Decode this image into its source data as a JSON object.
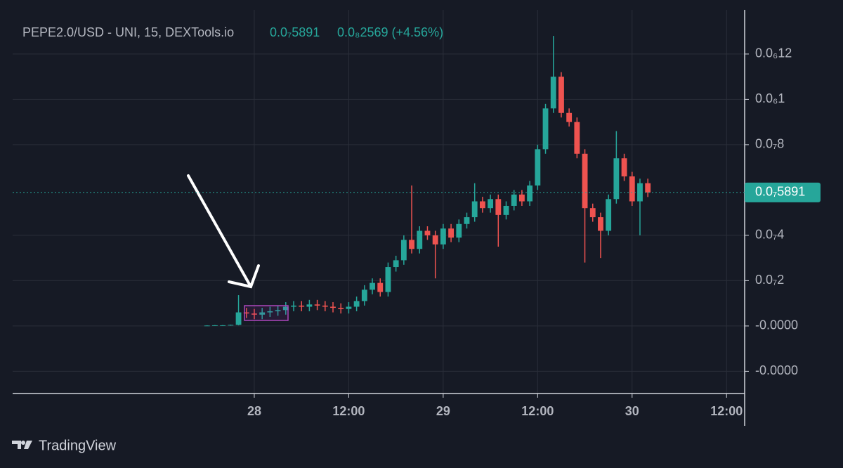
{
  "chart_data": {
    "type": "candlestick",
    "title": "PEPE2.0/USD - UNI, 15, DEXTools.io",
    "price": "0.0₇5891",
    "change": "0.0₈2569 (+4.56%)",
    "footer": "TradingView",
    "up_color": "#26a69a",
    "down_color": "#ef5350",
    "grid": true,
    "last_price": {
      "value": 5.891e-08,
      "label": "0.0₇5891"
    },
    "xlim": [
      -30.7,
      62.3
    ],
    "xticks": [
      {
        "value": 0,
        "label": "28"
      },
      {
        "value": 12,
        "label": "12:00"
      },
      {
        "value": 24,
        "label": "29"
      },
      {
        "value": 36,
        "label": "12:00"
      },
      {
        "value": 48,
        "label": "30"
      },
      {
        "value": 60,
        "label": "12:00"
      }
    ],
    "ylim": [
      -2.98e-08,
      1.395e-07
    ],
    "yticks": [
      {
        "value": 1.2e-07,
        "label": "0.0₆12"
      },
      {
        "value": 1e-07,
        "label": "0.0₆1"
      },
      {
        "value": 8e-08,
        "label": "0.0₇8"
      },
      {
        "value": 4e-08,
        "label": "0.0₇4"
      },
      {
        "value": 2e-08,
        "label": "0.0₇2"
      },
      {
        "value": 0,
        "label": "-0.0000"
      },
      {
        "value": -2e-08,
        "label": "-0.0000"
      }
    ],
    "x": [
      -6,
      -5,
      -4,
      -3,
      -2,
      -1,
      0,
      1,
      2,
      3,
      4,
      5,
      6,
      7,
      8,
      9,
      10,
      11,
      12,
      13,
      14,
      15,
      16,
      17,
      18,
      19,
      20,
      21,
      22,
      23,
      24,
      25,
      26,
      27,
      28,
      29,
      30,
      31,
      32,
      33,
      34,
      35,
      36,
      37,
      38,
      39,
      40,
      41,
      42,
      43,
      44,
      45,
      46,
      47,
      48,
      49,
      50
    ],
    "open": [
      1e-10,
      2e-10,
      3e-10,
      3e-10,
      5e-10,
      6e-09,
      5.5e-09,
      5e-09,
      6e-09,
      6.5e-09,
      7e-09,
      8.5e-09,
      9e-09,
      8.5e-09,
      9.5e-09,
      9e-09,
      8.5e-09,
      8e-09,
      7.5e-09,
      8.5e-09,
      1.1e-08,
      1.6e-08,
      1.9e-08,
      1.5e-08,
      2.6e-08,
      2.9e-08,
      3.8e-08,
      3.4e-08,
      4.2e-08,
      4e-08,
      3.6e-08,
      4.3e-08,
      3.9e-08,
      4.5e-08,
      4.8e-08,
      5.5e-08,
      5.2e-08,
      5.6e-08,
      4.9e-08,
      5.3e-08,
      5.8e-08,
      5.5e-08,
      6.2e-08,
      7.8e-08,
      9.6e-08,
      1.1e-07,
      9.4e-08,
      9e-08,
      7.6e-08,
      5.2e-08,
      4.8e-08,
      4.2e-08,
      5.6e-08,
      7.4e-08,
      6.6e-08,
      5.5e-08,
      6.3e-08
    ],
    "high": [
      3e-10,
      4e-10,
      4e-10,
      6e-10,
      1.36e-08,
      8e-09,
      7.5e-09,
      8e-09,
      8.5e-09,
      9e-09,
      1.05e-08,
      1.1e-08,
      1.1e-08,
      1.15e-08,
      1.15e-08,
      1.1e-08,
      1.05e-08,
      1e-08,
      1.05e-08,
      1.3e-08,
      1.8e-08,
      2.1e-08,
      2.1e-08,
      2.8e-08,
      3.1e-08,
      4e-08,
      6.2e-08,
      4.4e-08,
      4.4e-08,
      4.2e-08,
      4.5e-08,
      4.5e-08,
      4.7e-08,
      5e-08,
      6.3e-08,
      5.7e-08,
      5.8e-08,
      5.8e-08,
      5.5e-08,
      6e-08,
      6e-08,
      6.4e-08,
      8e-08,
      9.8e-08,
      1.28e-07,
      1.12e-07,
      9.6e-08,
      9.2e-08,
      7.8e-08,
      5.4e-08,
      5e-08,
      5.8e-08,
      8.6e-08,
      7.6e-08,
      6.8e-08,
      6.5e-08,
      6.5e-08
    ],
    "low": [
      0,
      1e-10,
      2e-10,
      2e-10,
      3e-10,
      3.5e-09,
      3e-09,
      3e-09,
      4e-09,
      4.5e-09,
      5e-09,
      6.5e-09,
      6.5e-09,
      6.5e-09,
      7e-09,
      6.5e-09,
      6e-09,
      5.5e-09,
      5.5e-09,
      6.5e-09,
      9e-09,
      1.4e-08,
      1.3e-08,
      1.3e-08,
      2.4e-08,
      2.7e-08,
      3.2e-08,
      3.2e-08,
      3.8e-08,
      2.1e-08,
      3.4e-08,
      3.7e-08,
      3.7e-08,
      4.3e-08,
      4.6e-08,
      5e-08,
      5e-08,
      3.5e-08,
      4.7e-08,
      5.1e-08,
      5.3e-08,
      5.3e-08,
      6e-08,
      7.6e-08,
      9.4e-08,
      9.2e-08,
      8.8e-08,
      7.4e-08,
      2.8e-08,
      4.6e-08,
      3e-08,
      4e-08,
      5.4e-08,
      6.4e-08,
      5.3e-08,
      4e-08,
      5.691e-08
    ],
    "close": [
      2e-10,
      3e-10,
      3e-10,
      5e-10,
      6e-09,
      5.5e-09,
      5e-09,
      6e-09,
      6.5e-09,
      7e-09,
      8.5e-09,
      9e-09,
      8.5e-09,
      9.5e-09,
      9e-09,
      8.5e-09,
      8e-09,
      7.5e-09,
      8.5e-09,
      1.1e-08,
      1.6e-08,
      1.9e-08,
      1.5e-08,
      2.6e-08,
      2.9e-08,
      3.8e-08,
      3.4e-08,
      4.2e-08,
      4e-08,
      3.6e-08,
      4.3e-08,
      3.9e-08,
      4.5e-08,
      4.8e-08,
      5.5e-08,
      5.2e-08,
      5.6e-08,
      4.9e-08,
      5.3e-08,
      5.8e-08,
      5.5e-08,
      6.2e-08,
      7.8e-08,
      9.6e-08,
      1.1e-07,
      9.4e-08,
      9e-08,
      7.6e-08,
      5.2e-08,
      4.8e-08,
      4.2e-08,
      5.6e-08,
      7.4e-08,
      6.6e-08,
      5.5e-08,
      6.3e-08,
      5.891e-08
    ]
  }
}
